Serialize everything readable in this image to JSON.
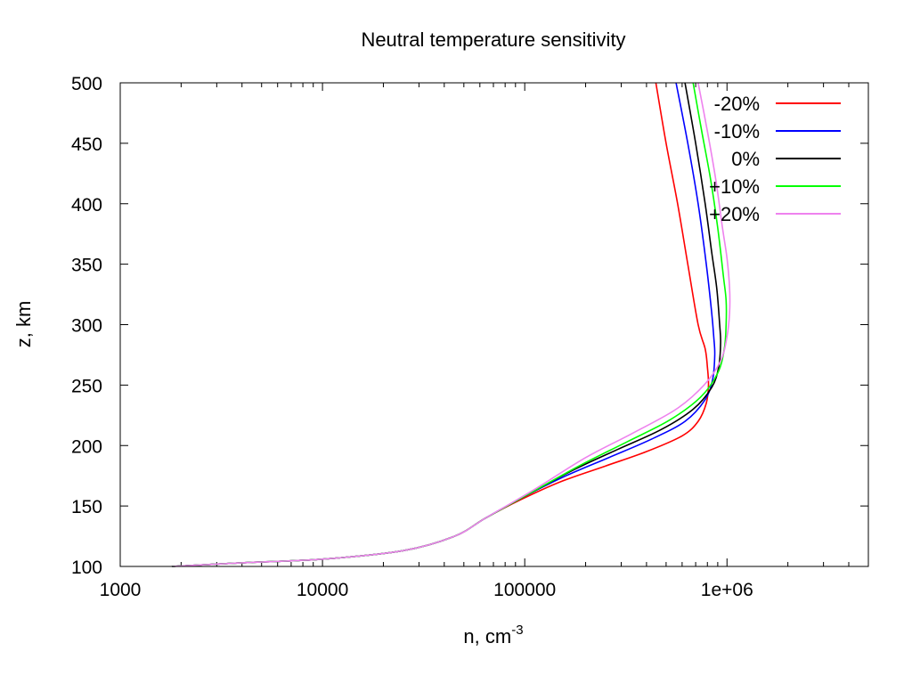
{
  "chart_data": {
    "type": "line",
    "title": "Neutral temperature sensitivity",
    "xlabel": "n, cm",
    "xlabel_superscript": "-3",
    "ylabel": "z, km",
    "xscale": "log",
    "xlim": [
      1000,
      5000000
    ],
    "ylim": [
      100,
      500
    ],
    "xticks": [
      {
        "value": 1000,
        "label": "1000"
      },
      {
        "value": 10000,
        "label": "10000"
      },
      {
        "value": 100000,
        "label": "100000"
      },
      {
        "value": 1000000,
        "label": "1e+06"
      }
    ],
    "yticks": [
      {
        "value": 100,
        "label": "100"
      },
      {
        "value": 150,
        "label": "150"
      },
      {
        "value": 200,
        "label": "200"
      },
      {
        "value": 250,
        "label": "250"
      },
      {
        "value": 300,
        "label": "300"
      },
      {
        "value": 350,
        "label": "350"
      },
      {
        "value": 400,
        "label": "400"
      },
      {
        "value": 450,
        "label": "450"
      },
      {
        "value": 500,
        "label": "500"
      }
    ],
    "legend_position": "top-right",
    "grid": false,
    "series": [
      {
        "name": "-20%",
        "color": "#ff0000",
        "points": [
          [
            1800,
            100
          ],
          [
            4000,
            103
          ],
          [
            10000,
            106
          ],
          [
            25000,
            113
          ],
          [
            45000,
            125
          ],
          [
            64000,
            140
          ],
          [
            95000,
            155
          ],
          [
            150000,
            170
          ],
          [
            250000,
            183
          ],
          [
            400000,
            195
          ],
          [
            600000,
            208
          ],
          [
            720000,
            220
          ],
          [
            790000,
            235
          ],
          [
            810000,
            250
          ],
          [
            800000,
            265
          ],
          [
            780000,
            280
          ],
          [
            720000,
            300
          ],
          [
            640000,
            350
          ],
          [
            570000,
            400
          ],
          [
            500000,
            450
          ],
          [
            445000,
            500
          ]
        ]
      },
      {
        "name": "-10%",
        "color": "#0000ff",
        "points": [
          [
            1800,
            100
          ],
          [
            4000,
            103
          ],
          [
            10000,
            106
          ],
          [
            25000,
            113
          ],
          [
            45000,
            125
          ],
          [
            64000,
            140
          ],
          [
            100000,
            158
          ],
          [
            160000,
            175
          ],
          [
            260000,
            190
          ],
          [
            420000,
            205
          ],
          [
            620000,
            220
          ],
          [
            780000,
            238
          ],
          [
            850000,
            255
          ],
          [
            870000,
            275
          ],
          [
            860000,
            290
          ],
          [
            840000,
            310
          ],
          [
            790000,
            350
          ],
          [
            720000,
            400
          ],
          [
            640000,
            450
          ],
          [
            560000,
            500
          ]
        ]
      },
      {
        "name": "0%",
        "color": "#000000",
        "points": [
          [
            1800,
            100
          ],
          [
            4000,
            103
          ],
          [
            10000,
            106
          ],
          [
            25000,
            113
          ],
          [
            45000,
            125
          ],
          [
            64000,
            140
          ],
          [
            105000,
            160
          ],
          [
            175000,
            180
          ],
          [
            290000,
            197
          ],
          [
            470000,
            213
          ],
          [
            680000,
            230
          ],
          [
            840000,
            248
          ],
          [
            910000,
            265
          ],
          [
            930000,
            285
          ],
          [
            920000,
            300
          ],
          [
            890000,
            330
          ],
          [
            840000,
            360
          ],
          [
            780000,
            400
          ],
          [
            700000,
            450
          ],
          [
            620000,
            500
          ]
        ]
      },
      {
        "name": "+10%",
        "color": "#00ff00",
        "points": [
          [
            1800,
            100
          ],
          [
            4000,
            103
          ],
          [
            10000,
            106
          ],
          [
            25000,
            113
          ],
          [
            45000,
            125
          ],
          [
            64000,
            140
          ],
          [
            110000,
            162
          ],
          [
            190000,
            184
          ],
          [
            320000,
            203
          ],
          [
            520000,
            221
          ],
          [
            740000,
            240
          ],
          [
            900000,
            260
          ],
          [
            970000,
            280
          ],
          [
            990000,
            300
          ],
          [
            990000,
            320
          ],
          [
            960000,
            340
          ],
          [
            900000,
            380
          ],
          [
            830000,
            420
          ],
          [
            750000,
            460
          ],
          [
            680000,
            500
          ]
        ]
      },
      {
        "name": "+20%",
        "color": "#ee82ee",
        "points": [
          [
            1800,
            100
          ],
          [
            4000,
            103
          ],
          [
            10000,
            106
          ],
          [
            25000,
            113
          ],
          [
            45000,
            125
          ],
          [
            64000,
            140
          ],
          [
            115000,
            165
          ],
          [
            200000,
            190
          ],
          [
            340000,
            210
          ],
          [
            560000,
            230
          ],
          [
            770000,
            250
          ],
          [
            930000,
            270
          ],
          [
            1000000,
            290
          ],
          [
            1030000,
            310
          ],
          [
            1030000,
            330
          ],
          [
            1000000,
            355
          ],
          [
            950000,
            380
          ],
          [
            880000,
            420
          ],
          [
            800000,
            460
          ],
          [
            720000,
            500
          ]
        ]
      }
    ]
  }
}
